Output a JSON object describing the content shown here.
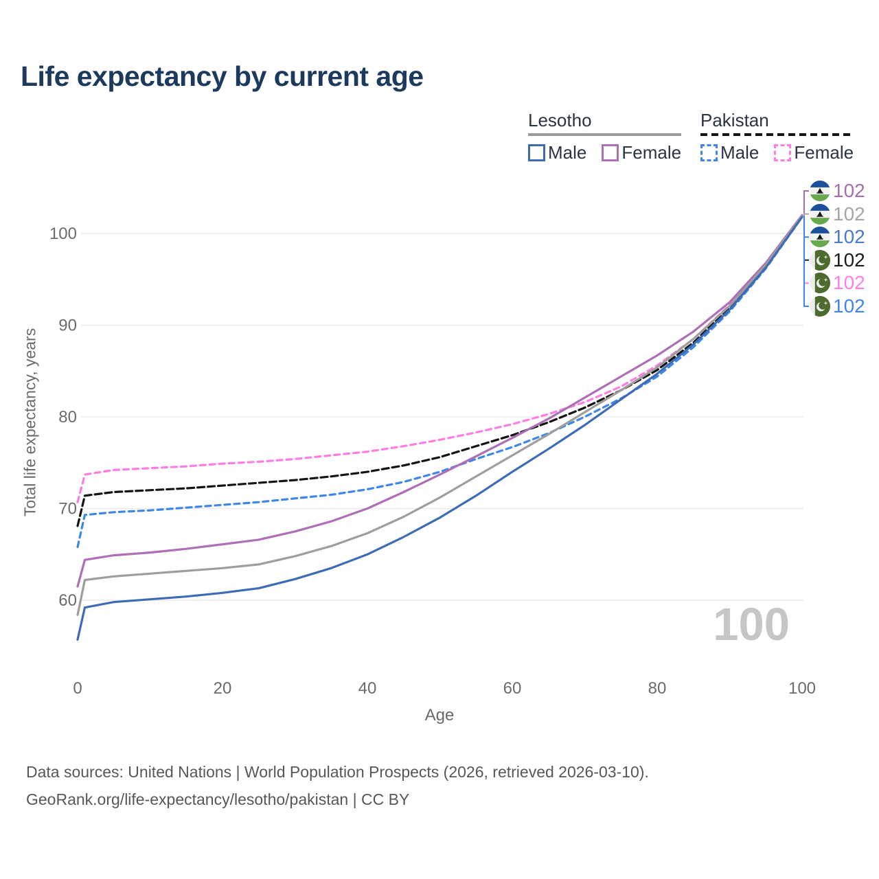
{
  "title": "Life expectancy by current age",
  "legend": {
    "groups": [
      {
        "label": "Lesotho",
        "underline_style": "solid",
        "underline_color": "#9a9a9a",
        "items": [
          {
            "label": "Male",
            "color": "#3d6cb4",
            "style": "solid"
          },
          {
            "label": "Female",
            "color": "#ad6fb5",
            "style": "solid"
          }
        ]
      },
      {
        "label": "Pakistan",
        "underline_style": "dashed",
        "underline_color": "#141414",
        "items": [
          {
            "label": "Male",
            "color": "#3e86e8",
            "style": "dashed"
          },
          {
            "label": "Female",
            "color": "#fd7de4",
            "style": "dashed"
          }
        ]
      }
    ]
  },
  "chart_data": {
    "type": "line",
    "title": "Life expectancy by current age",
    "xlabel": "Age",
    "ylabel": "Total life expectancy, years",
    "x_ticks": [
      0,
      20,
      40,
      60,
      80,
      100
    ],
    "y_ticks": [
      60,
      70,
      80,
      90,
      100
    ],
    "xlim": [
      0,
      100
    ],
    "ylim": [
      55,
      103
    ],
    "grid": "horizontal",
    "legend_position": "top-right",
    "x": [
      0,
      1,
      5,
      10,
      15,
      20,
      25,
      30,
      35,
      40,
      45,
      50,
      55,
      60,
      65,
      70,
      75,
      80,
      85,
      90,
      95,
      100
    ],
    "series": [
      {
        "name": "Pakistan Female",
        "country": "Pakistan",
        "sex": "Female",
        "color": "#fd7de4",
        "dash": "8 6",
        "values": [
          70.7,
          73.7,
          74.2,
          74.4,
          74.6,
          74.9,
          75.1,
          75.4,
          75.8,
          76.2,
          76.8,
          77.5,
          78.3,
          79.2,
          80.3,
          81.6,
          83.3,
          85.6,
          88.5,
          92.2,
          96.6,
          102.0
        ]
      },
      {
        "name": "Pakistan Total",
        "country": "Pakistan",
        "sex": "Total",
        "color": "#141414",
        "dash": "10 5",
        "values": [
          68.1,
          71.4,
          71.8,
          72.0,
          72.2,
          72.5,
          72.8,
          73.1,
          73.5,
          74.0,
          74.7,
          75.6,
          76.8,
          78.0,
          79.4,
          81.0,
          82.9,
          85.1,
          88.1,
          91.9,
          96.4,
          101.9
        ]
      },
      {
        "name": "Pakistan Male",
        "country": "Pakistan",
        "sex": "Male",
        "color": "#3e86e8",
        "dash": "8 6",
        "values": [
          65.8,
          69.3,
          69.6,
          69.8,
          70.1,
          70.4,
          70.7,
          71.1,
          71.5,
          72.1,
          72.9,
          74.0,
          75.4,
          76.7,
          78.2,
          80.0,
          82.0,
          84.4,
          87.6,
          91.5,
          96.2,
          101.8
        ]
      },
      {
        "name": "Lesotho Female",
        "country": "Lesotho",
        "sex": "Female",
        "color": "#ad6fb5",
        "dash": "",
        "values": [
          61.5,
          64.4,
          64.9,
          65.2,
          65.6,
          66.1,
          66.6,
          67.5,
          68.6,
          70.0,
          71.8,
          73.7,
          75.7,
          77.7,
          79.8,
          82.1,
          84.4,
          86.7,
          89.3,
          92.5,
          96.8,
          102.0
        ]
      },
      {
        "name": "Lesotho Total",
        "country": "Lesotho",
        "sex": "Total",
        "color": "#9e9e9e",
        "dash": "",
        "values": [
          58.4,
          62.2,
          62.6,
          62.9,
          63.2,
          63.5,
          63.9,
          64.8,
          65.9,
          67.3,
          69.1,
          71.2,
          73.5,
          75.8,
          78.1,
          80.5,
          82.9,
          85.4,
          88.5,
          92.1,
          96.6,
          101.9
        ]
      },
      {
        "name": "Lesotho Male",
        "country": "Lesotho",
        "sex": "Male",
        "color": "#3d6cb4",
        "dash": "",
        "values": [
          55.7,
          59.2,
          59.8,
          60.1,
          60.4,
          60.8,
          61.3,
          62.3,
          63.5,
          65.0,
          66.9,
          69.0,
          71.4,
          74.0,
          76.5,
          79.1,
          81.9,
          84.7,
          87.9,
          91.7,
          96.3,
          101.8
        ]
      }
    ],
    "end_labels": [
      {
        "series": "Lesotho Female",
        "flag": "lesotho",
        "value": "102",
        "color": "#a76db3"
      },
      {
        "series": "Lesotho Total",
        "flag": "lesotho",
        "value": "102",
        "color": "#a6a6a6"
      },
      {
        "series": "Lesotho Male",
        "flag": "lesotho",
        "value": "102",
        "color": "#4a7cc9"
      },
      {
        "series": "Pakistan Total",
        "flag": "pakistan",
        "value": "102",
        "color": "#1a1a1a"
      },
      {
        "series": "Pakistan Female",
        "flag": "pakistan",
        "value": "102",
        "color": "#fc80e8"
      },
      {
        "series": "Pakistan Male",
        "flag": "pakistan",
        "value": "102",
        "color": "#3f86ea"
      }
    ]
  },
  "flags": {
    "lesotho": {
      "blue": "#1e4f9c",
      "white": "#f2f2f2",
      "green": "#68a84e",
      "hat": "#111111"
    },
    "pakistan": {
      "green": "#4c6b2d",
      "white": "#ededed"
    }
  },
  "watermark": "100",
  "footer": {
    "line1": "Data sources: United Nations | World Population Prospects (2026, retrieved 2026-03-10).",
    "line2": "GeoRank.org/life-expectancy/lesotho/pakistan | CC BY"
  }
}
